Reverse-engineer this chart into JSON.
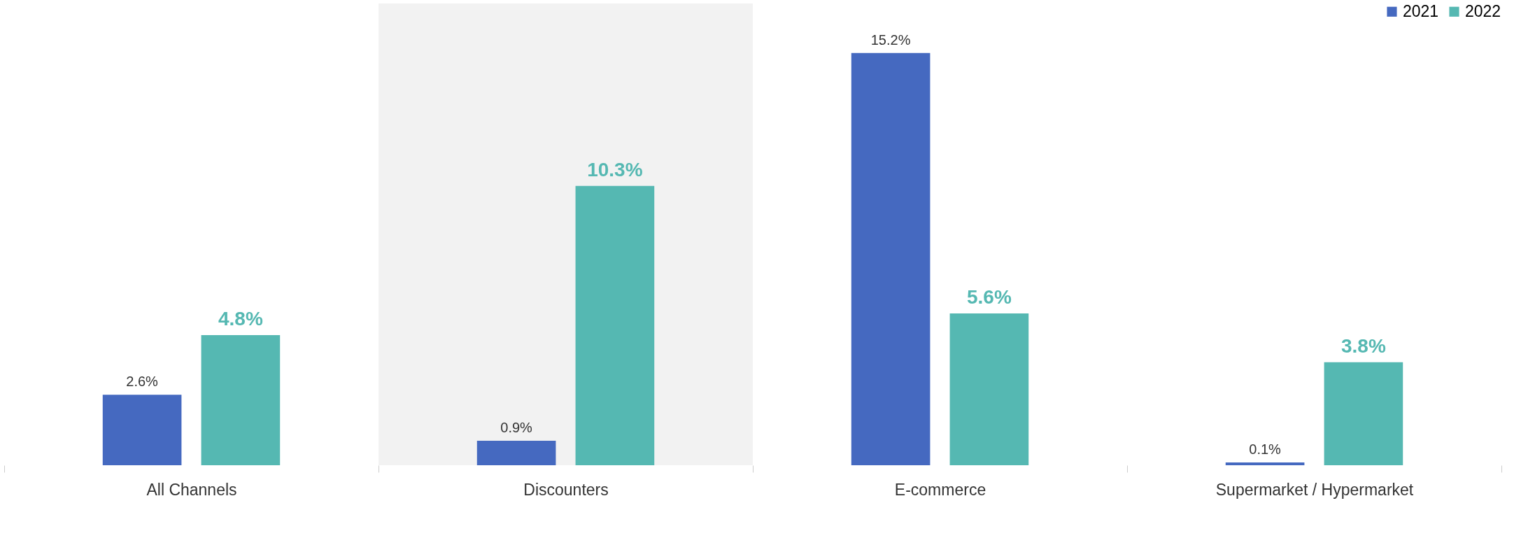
{
  "chart_data": {
    "type": "bar",
    "categories": [
      "All Channels",
      "Discounters",
      "E-commerce",
      "Supermarket / Hypermarket"
    ],
    "series": [
      {
        "name": "2021",
        "color": "#4569c0",
        "values": [
          2.6,
          0.9,
          15.2,
          0.1
        ],
        "value_labels": [
          "2.6%",
          "0.9%",
          "15.2%",
          "0.1%"
        ]
      },
      {
        "name": "2022",
        "color": "#55b8b2",
        "values": [
          4.8,
          10.3,
          5.6,
          3.8
        ],
        "value_labels": [
          "4.8%",
          "10.3%",
          "5.6%",
          "3.8%"
        ]
      }
    ],
    "bands": [
      {
        "axis": "x",
        "from": "Discounters",
        "to": "Discounters",
        "color": "#f2f2f2"
      }
    ],
    "legend": "top right",
    "grid": false,
    "tick_labels": "x"
  }
}
